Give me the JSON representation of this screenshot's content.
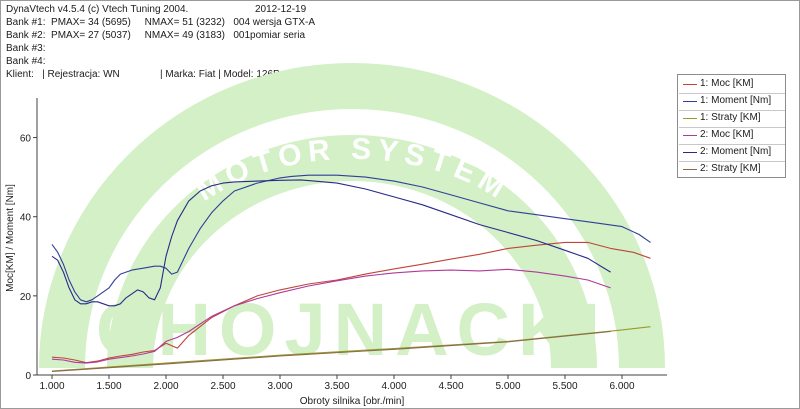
{
  "header": {
    "app": "DynaVtech v4.5.4 (c) Vtech Tuning 2004.",
    "date": "2012-12-19",
    "bank1": "Bank #1:  PMAX= 34 (5695)     NMAX= 51 (3232)   004 wersja GTX-A",
    "bank2": "Bank #2:  PMAX= 27 (5037)     NMAX= 49 (3183)   001pomiar seria",
    "bank3": "Bank #3:",
    "bank4": "Bank #4:",
    "client": "Klient:   | Rejestracja: WN",
    "vehicle": "| Marka: Fiat | Model: 126P"
  },
  "watermark": {
    "arc_text": "MOTOR SYSTEM",
    "main_text": "CHOJNACKI",
    "color": "#d3f0c6"
  },
  "legend": {
    "items": [
      {
        "label": "1: Moc [KM]",
        "color": "#c0443a"
      },
      {
        "label": "1: Moment [Nm]",
        "color": "#2f3f9a"
      },
      {
        "label": "1: Straty [KM]",
        "color": "#9a9a2a"
      },
      {
        "label": "2: Moc [KM]",
        "color": "#b03a9a"
      },
      {
        "label": "2: Moment [Nm]",
        "color": "#2a2a8a"
      },
      {
        "label": "2: Straty [KM]",
        "color": "#8a6a4a"
      }
    ]
  },
  "chart_data": {
    "type": "line",
    "xlabel": "Obroty silnika [obr./min]",
    "ylabel": "Moc[KM] / Moment [Nm]",
    "xlim": [
      1000,
      6250
    ],
    "ylim": [
      0,
      70
    ],
    "x_ticks": [
      1000,
      1500,
      2000,
      2500,
      3000,
      3500,
      4000,
      4500,
      5000,
      5500,
      6000
    ],
    "x_tick_labels": [
      "1.000",
      "1.500",
      "2.000",
      "2.500",
      "3.000",
      "3.500",
      "4.000",
      "4.500",
      "5.000",
      "5.500",
      "6.000"
    ],
    "y_ticks": [
      0,
      20,
      40,
      60
    ],
    "y_tick_labels": [
      "0",
      "20",
      "40",
      "60"
    ],
    "series": [
      {
        "name": "1: Moc [KM]",
        "color": "#c0443a",
        "x": [
          1000,
          1100,
          1200,
          1300,
          1400,
          1500,
          1600,
          1700,
          1800,
          1900,
          2000,
          2100,
          2200,
          2400,
          2600,
          2800,
          3000,
          3250,
          3500,
          3750,
          4000,
          4250,
          4500,
          4750,
          5000,
          5250,
          5500,
          5700,
          5900,
          6100,
          6250
        ],
        "y": [
          4.5,
          4.3,
          3.8,
          3.1,
          3.5,
          4.3,
          4.8,
          5.2,
          5.8,
          6.2,
          8.0,
          6.8,
          10.0,
          14.5,
          17.5,
          20.0,
          21.5,
          23.0,
          24.0,
          25.5,
          26.8,
          28.0,
          29.3,
          30.5,
          32.0,
          32.8,
          33.5,
          33.5,
          32.0,
          31.0,
          29.5
        ]
      },
      {
        "name": "1: Moment [Nm]",
        "color": "#2f3f9a",
        "x": [
          1000,
          1050,
          1100,
          1150,
          1200,
          1250,
          1300,
          1350,
          1400,
          1450,
          1500,
          1550,
          1600,
          1700,
          1800,
          1900,
          1950,
          2000,
          2050,
          2100,
          2150,
          2200,
          2300,
          2400,
          2500,
          2600,
          2800,
          3000,
          3100,
          3250,
          3500,
          3750,
          4000,
          4250,
          4500,
          4750,
          5000,
          5250,
          5500,
          5750,
          6000,
          6150,
          6250
        ],
        "y": [
          33,
          31,
          28,
          24,
          21,
          19,
          18.5,
          19,
          20,
          21,
          22,
          24,
          25.5,
          26.5,
          27,
          27.5,
          27.5,
          27,
          25.5,
          26,
          29,
          32,
          37,
          41,
          44,
          46.5,
          48.5,
          49.8,
          50.2,
          50.5,
          50.5,
          50,
          49,
          47.5,
          45.5,
          43.5,
          41.5,
          40.5,
          39.5,
          38.5,
          37.5,
          35.5,
          33.5
        ]
      },
      {
        "name": "1: Straty [KM]",
        "color": "#9a9a2a",
        "x": [
          1000,
          2000,
          3000,
          4000,
          5000,
          6000,
          6250
        ],
        "y": [
          1.0,
          3.0,
          5.0,
          6.7,
          8.5,
          11.4,
          12.2
        ]
      },
      {
        "name": "2: Moc [KM]",
        "color": "#b03a9a",
        "x": [
          1000,
          1100,
          1200,
          1300,
          1400,
          1500,
          1600,
          1700,
          1800,
          1900,
          2000,
          2100,
          2200,
          2400,
          2600,
          2800,
          3000,
          3250,
          3500,
          3750,
          4000,
          4250,
          4500,
          4750,
          5000,
          5250,
          5500,
          5700,
          5900
        ],
        "y": [
          4.0,
          3.8,
          3.2,
          3.0,
          3.3,
          4.0,
          4.4,
          4.8,
          5.3,
          6.0,
          8.5,
          9.5,
          11.0,
          14.8,
          17.5,
          19.3,
          20.8,
          22.5,
          23.8,
          25.0,
          25.8,
          26.3,
          26.5,
          26.3,
          26.7,
          26.0,
          25.0,
          24.0,
          22.0
        ]
      },
      {
        "name": "2: Moment [Nm]",
        "color": "#2a2a8a",
        "x": [
          1000,
          1050,
          1100,
          1150,
          1200,
          1250,
          1300,
          1350,
          1400,
          1450,
          1500,
          1550,
          1600,
          1650,
          1700,
          1750,
          1800,
          1850,
          1900,
          1950,
          2000,
          2050,
          2100,
          2200,
          2300,
          2400,
          2500,
          2600,
          2800,
          3000,
          3183,
          3300,
          3500,
          3750,
          4000,
          4250,
          4500,
          4750,
          5000,
          5250,
          5500,
          5700,
          5900
        ],
        "y": [
          30,
          29,
          26,
          22,
          19,
          18,
          18,
          18.5,
          18.5,
          18,
          17.5,
          17.5,
          18,
          19.5,
          20.5,
          21.5,
          21,
          19.5,
          19,
          22,
          30,
          35,
          39,
          44,
          46.5,
          47.8,
          48.5,
          48.8,
          49,
          49.2,
          49.3,
          49,
          48.5,
          47,
          45,
          43,
          40.5,
          38,
          36,
          34,
          31.5,
          29.5,
          26
        ]
      },
      {
        "name": "2: Straty [KM]",
        "color": "#8a6a4a",
        "x": [
          1000,
          2000,
          3000,
          4000,
          5000,
          5900
        ],
        "y": [
          0.9,
          2.8,
          4.8,
          6.5,
          8.4,
          11.0
        ]
      }
    ]
  }
}
